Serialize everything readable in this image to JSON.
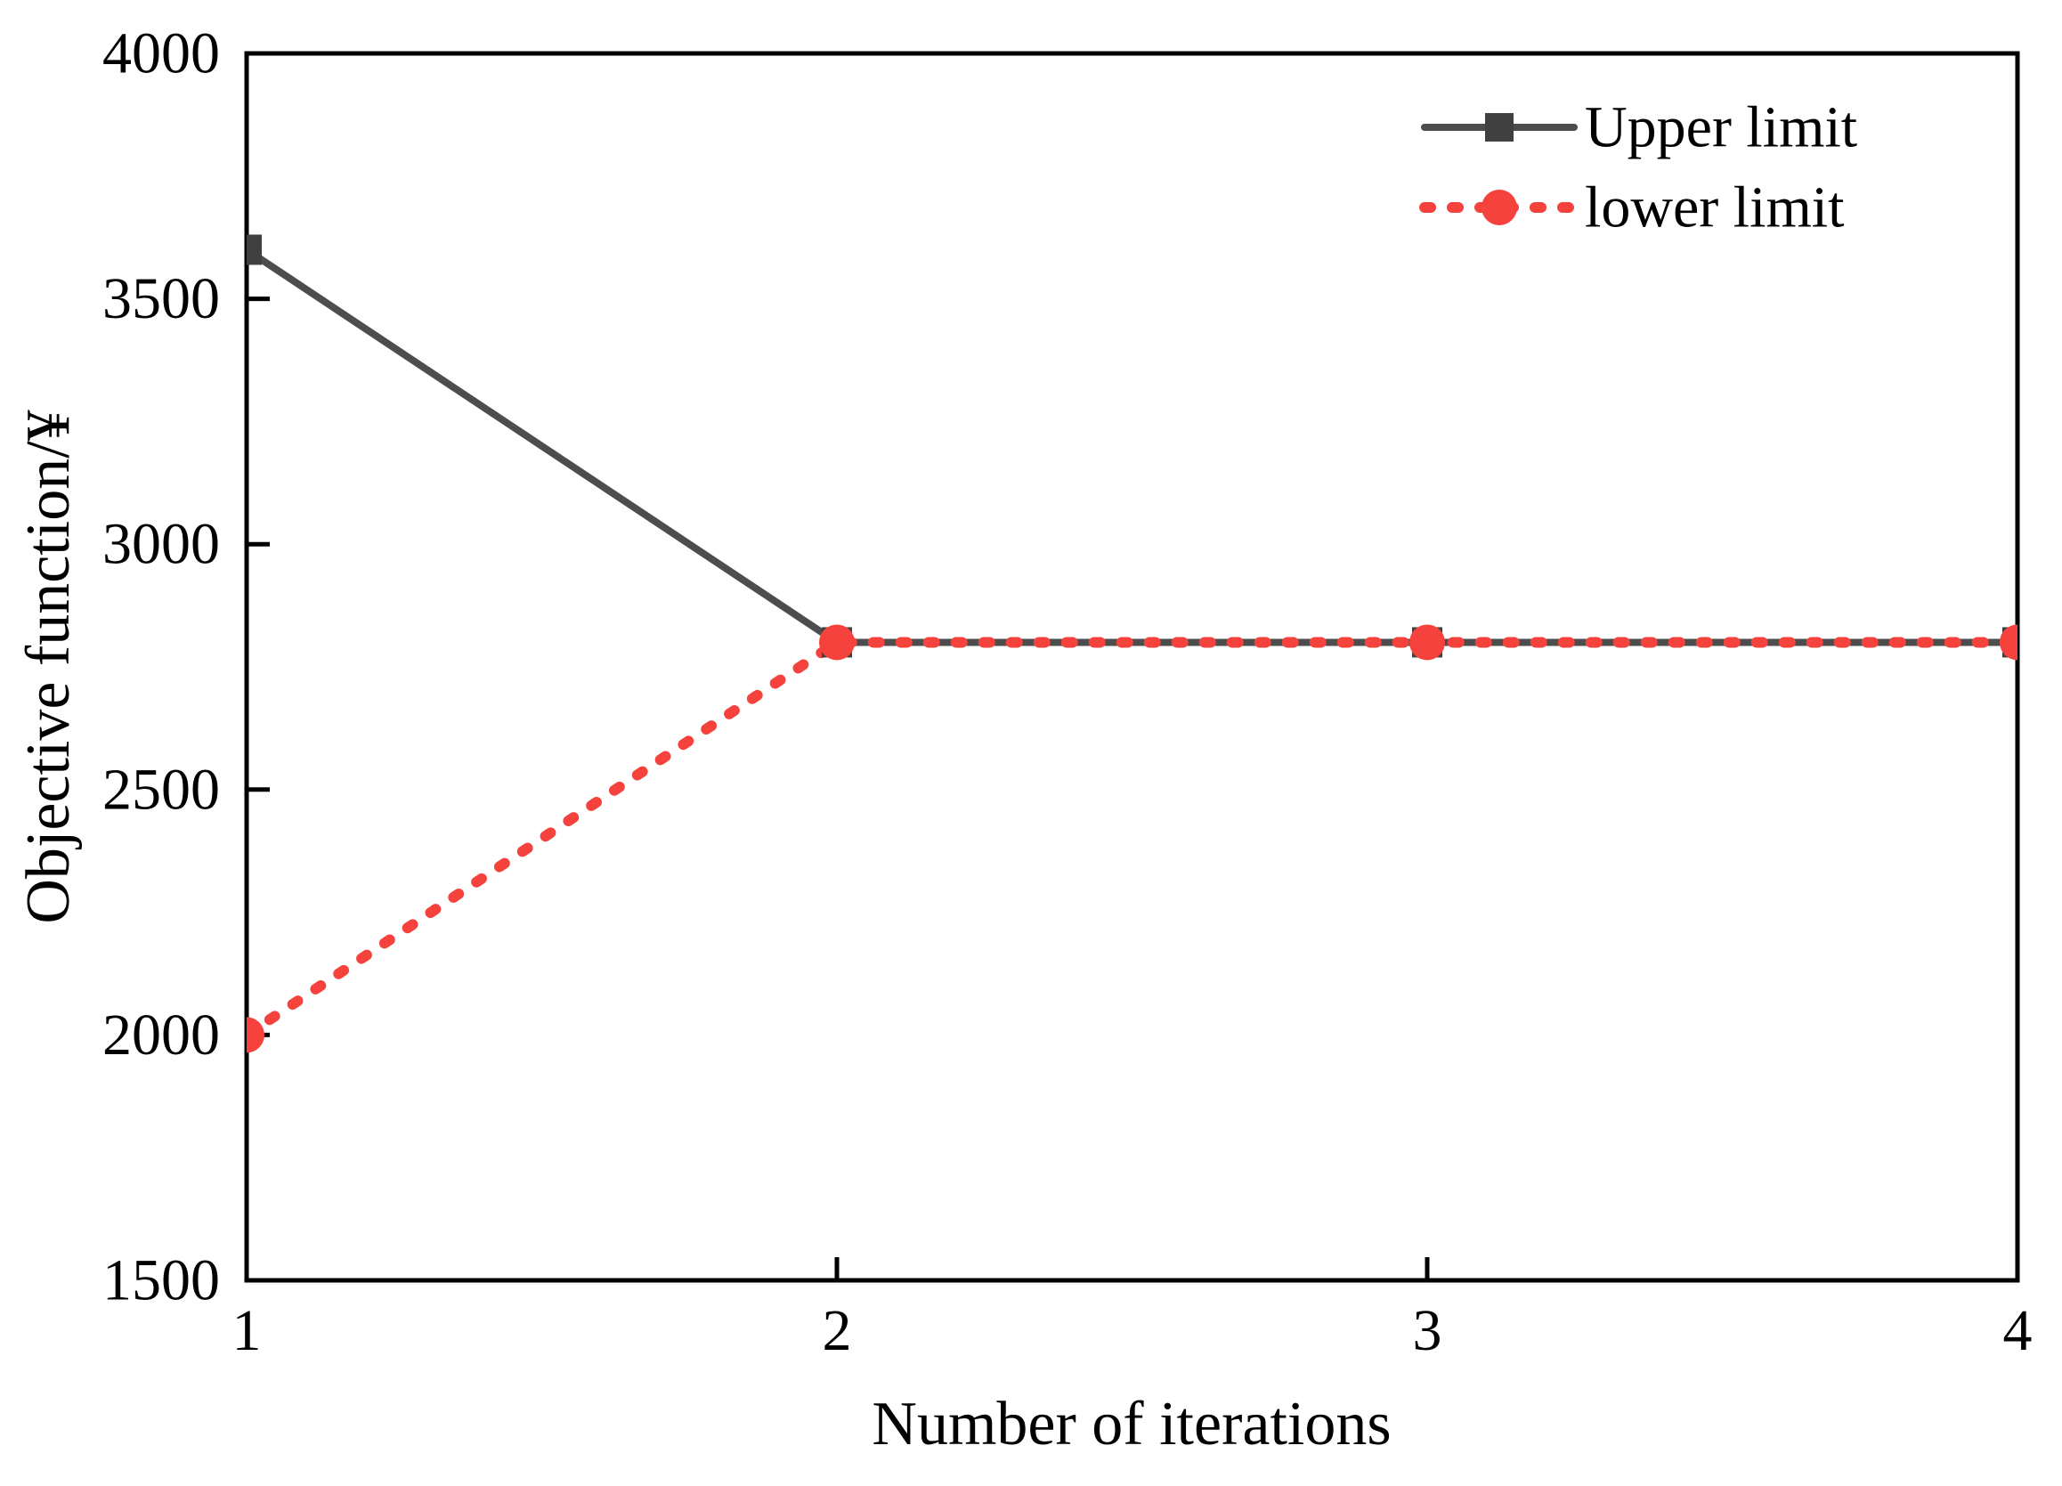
{
  "figure": {
    "background": "#ffffff"
  },
  "chart_data": {
    "type": "line",
    "title": "",
    "xlabel": "Number of iterations",
    "ylabel": "Objective function/¥",
    "x": [
      1,
      2,
      3,
      4
    ],
    "series": [
      {
        "name": "Upper limit",
        "values": [
          3600,
          2800,
          2800,
          2800
        ],
        "line_color": "#4d4d4d",
        "marker_color": "#404040",
        "line_style": "solid",
        "marker": "square"
      },
      {
        "name": "lower limit",
        "values": [
          2000,
          2800,
          2800,
          2800
        ],
        "line_color": "#f5423c",
        "marker_color": "#f5423c",
        "line_style": "dashed",
        "marker": "circle"
      }
    ],
    "xlim": [
      1,
      4
    ],
    "ylim": [
      1500,
      4000
    ],
    "xticks": [
      1,
      2,
      3,
      4
    ],
    "yticks": [
      1500,
      2000,
      2500,
      3000,
      3500,
      4000
    ],
    "grid": false,
    "legend_position": "top-right",
    "axis_color": "#000000"
  }
}
